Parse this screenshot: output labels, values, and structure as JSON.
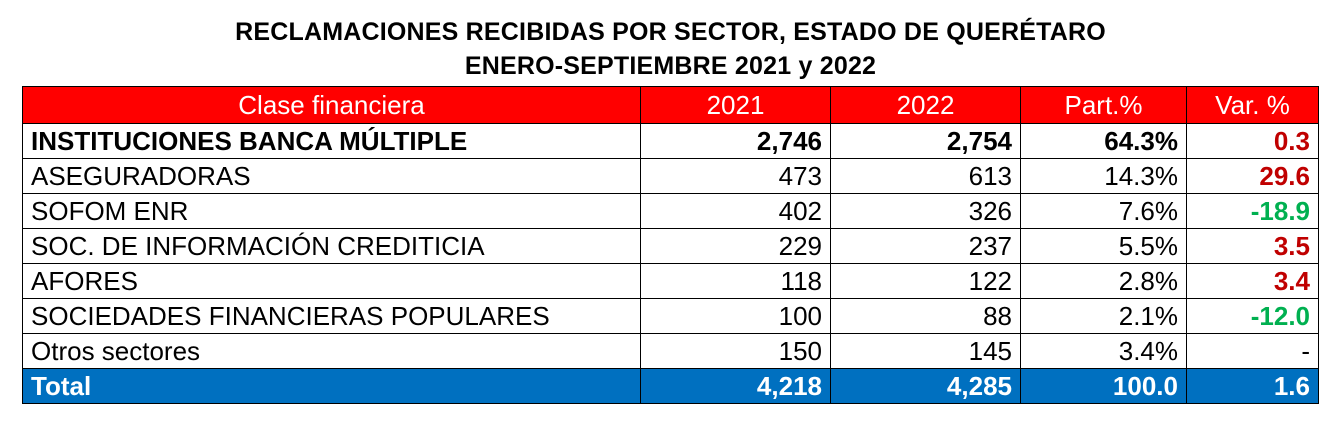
{
  "title": {
    "line1": "RECLAMACIONES RECIBIDAS POR SECTOR, ESTADO DE QUERÉTARO",
    "line2": "ENERO-SEPTIEMBRE 2021 y 2022"
  },
  "colors": {
    "header_bg": "#ff0000",
    "total_bg": "#0070c0",
    "positive": "#c00000",
    "negative": "#00b050"
  },
  "table": {
    "headers": [
      "Clase financiera",
      "2021",
      "2022",
      "Part.%",
      "Var. %"
    ],
    "rows": [
      {
        "clase": "INSTITUCIONES BANCA MÚLTIPLE",
        "y2021": "2,746",
        "y2022": "2,754",
        "part": "64.3%",
        "var": "0.3",
        "var_trend": "up"
      },
      {
        "clase": "ASEGURADORAS",
        "y2021": "473",
        "y2022": "613",
        "part": "14.3%",
        "var": "29.6",
        "var_trend": "up"
      },
      {
        "clase": "SOFOM ENR",
        "y2021": "402",
        "y2022": "326",
        "part": "7.6%",
        "var": "-18.9",
        "var_trend": "down"
      },
      {
        "clase": "SOC. DE INFORMACIÓN CREDITICIA",
        "y2021": "229",
        "y2022": "237",
        "part": "5.5%",
        "var": "3.5",
        "var_trend": "up"
      },
      {
        "clase": "AFORES",
        "y2021": "118",
        "y2022": "122",
        "part": "2.8%",
        "var": "3.4",
        "var_trend": "up"
      },
      {
        "clase": "SOCIEDADES FINANCIERAS POPULARES",
        "y2021": "100",
        "y2022": "88",
        "part": "2.1%",
        "var": "-12.0",
        "var_trend": "down"
      },
      {
        "clase": "Otros sectores",
        "y2021": "150",
        "y2022": "145",
        "part": "3.4%",
        "var": "-",
        "var_trend": "none"
      }
    ],
    "total": {
      "clase": "Total",
      "y2021": "4,218",
      "y2022": "4,285",
      "part": "100.0",
      "var": "1.6"
    }
  }
}
